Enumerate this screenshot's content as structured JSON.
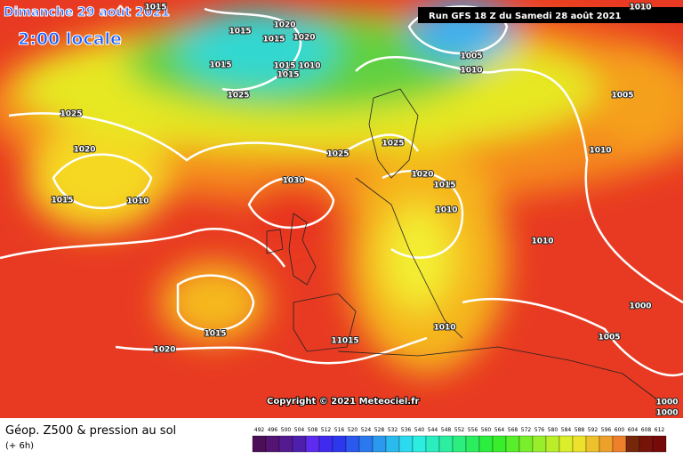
{
  "header": {
    "date": "Dimanche 29 août 2021",
    "time": "2:00 locale",
    "run": "Run GFS 18 Z du Samedi 28 août 2021"
  },
  "footer": {
    "title": "Géop. Z500 & pression au sol",
    "step": "(+ 6h)",
    "copyright": "Copyright © 2021 Meteociel.fr"
  },
  "legend": {
    "ticks": [
      492,
      496,
      500,
      504,
      508,
      512,
      516,
      520,
      524,
      528,
      532,
      536,
      540,
      544,
      548,
      552,
      556,
      560,
      564,
      568,
      572,
      576,
      580,
      584,
      588,
      592,
      596,
      600,
      604,
      608,
      612
    ]
  },
  "isobars": [
    "1015",
    "1015",
    "1015",
    "1020",
    "1020",
    "1015",
    "1015",
    "1010",
    "1015",
    "1025",
    "1025",
    "1020",
    "1015",
    "1010",
    "1030",
    "1025",
    "1025",
    "1020",
    "1015",
    "1010",
    "1010",
    "1005",
    "1010",
    "1005",
    "1010",
    "1000",
    "1005",
    "1015",
    "1020",
    "11015",
    "1010",
    "1000",
    "1000",
    "1010"
  ]
}
